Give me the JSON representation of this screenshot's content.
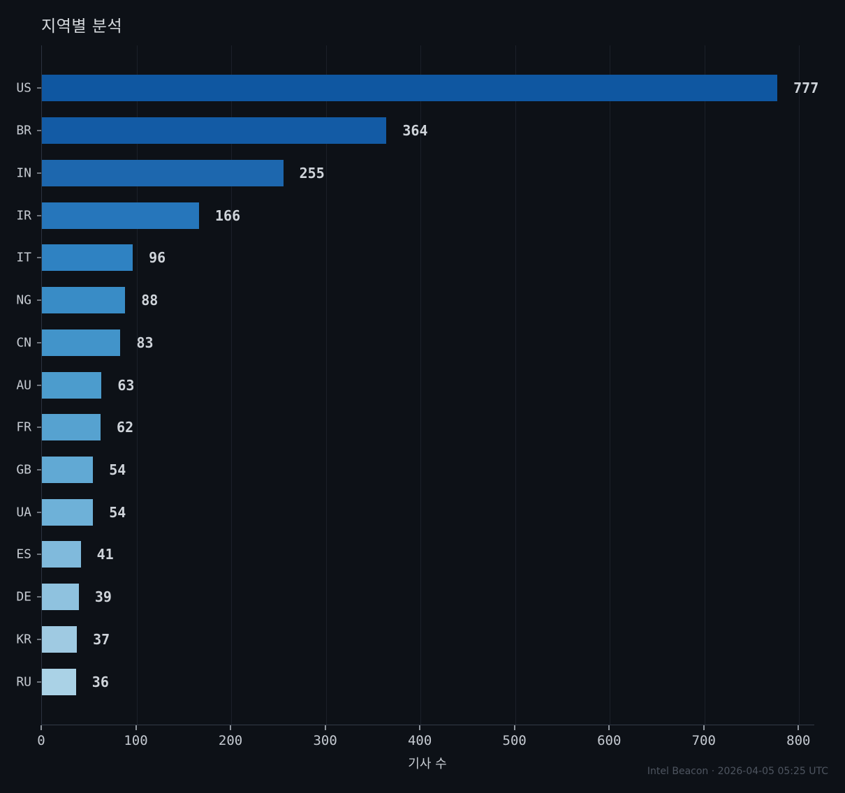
{
  "title": "지역별 분석",
  "footer": "Intel Beacon · 2026-04-05 05:25 UTC",
  "colors": {
    "background": "#0d1117",
    "gridline": "#1b2029",
    "axis_line": "#333b48",
    "tick_mark": "#8f959d",
    "tick_label": "#c5cad1",
    "value_label": "#cfd4da",
    "title_text": "#d5d9dd",
    "footer_text": "#4e5560"
  },
  "chart_data": {
    "type": "bar",
    "orientation": "horizontal",
    "title": "지역별 분석",
    "xlabel": "기사 수",
    "ylabel": "",
    "categories": [
      "US",
      "BR",
      "IN",
      "IR",
      "IT",
      "NG",
      "CN",
      "AU",
      "FR",
      "GB",
      "UA",
      "ES",
      "DE",
      "KR",
      "RU"
    ],
    "values": [
      777,
      364,
      255,
      166,
      96,
      88,
      83,
      63,
      62,
      54,
      54,
      41,
      39,
      37,
      36
    ],
    "bar_colors": [
      "#0f57a1",
      "#135ba5",
      "#1d67ae",
      "#2676bb",
      "#2f82c2",
      "#398cc6",
      "#4294ca",
      "#4c9ccd",
      "#56a2d0",
      "#61a9d4",
      "#6eb1d8",
      "#80badc",
      "#8fc2df",
      "#9fcae2",
      "#aad2e6"
    ],
    "x_ticks": [
      0,
      100,
      200,
      300,
      400,
      500,
      600,
      700,
      800
    ],
    "xlim": [
      0,
      816
    ],
    "grid": "vertical",
    "value_labels": true,
    "legend": "none"
  }
}
